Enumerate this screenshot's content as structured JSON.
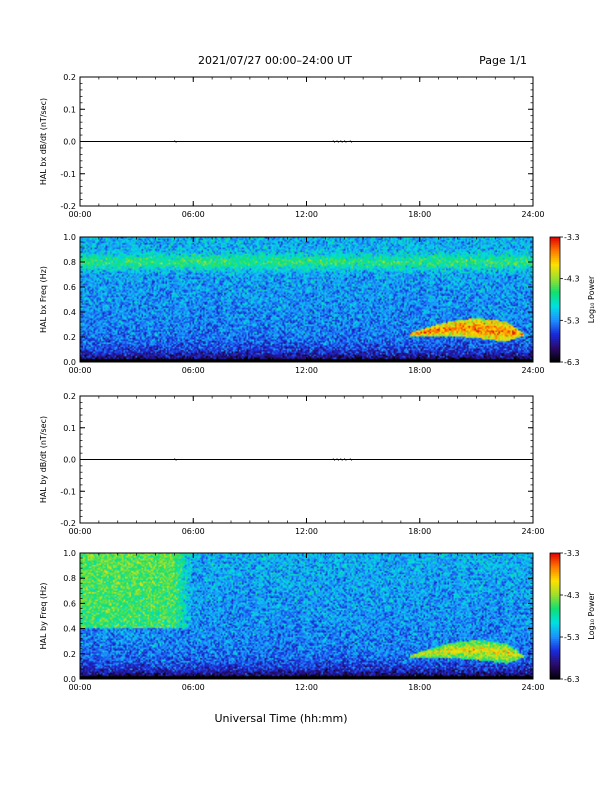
{
  "header": {
    "title": "2021/07/27  00:00–24:00 UT",
    "page": "Page 1/1"
  },
  "xaxis": {
    "label": "Universal Time (hh:mm)",
    "ticks": [
      "00:00",
      "06:00",
      "12:00",
      "18:00",
      "24:00"
    ],
    "range_hours": [
      0,
      24
    ]
  },
  "colorbar": {
    "label": "Log₁₀ Power",
    "ticks": [
      "-3.3",
      "-4.3",
      "-5.3",
      "-6.3"
    ],
    "range": [
      -6.3,
      -3.3
    ],
    "colormap": [
      "#000000",
      "#2a0a6a",
      "#1a2adc",
      "#1e90ff",
      "#00e0e0",
      "#10e070",
      "#9ae030",
      "#ffe000",
      "#ff7800",
      "#e00000"
    ]
  },
  "chart_data": [
    {
      "type": "line",
      "ylabel": "HAL bx dB/dt (nT/sec)",
      "ylim": [
        -0.2,
        0.2
      ],
      "yticks": [
        "0.2",
        "0.1",
        "0.0",
        "-0.1",
        "-0.2"
      ],
      "x": [
        0,
        24
      ],
      "y": [
        0.0,
        0.0
      ],
      "note_series": "near-zero trace with small disturbance around 13:30"
    },
    {
      "type": "heatmap",
      "ylabel": "HAL bx Freq (Hz)",
      "ylim": [
        0.0,
        1.0
      ],
      "yticks": [
        "1.0",
        "0.8",
        "0.6",
        "0.4",
        "0.2",
        "0.0"
      ],
      "xlim": [
        0,
        24
      ],
      "zlim": [
        -6.3,
        -3.3
      ],
      "features": [
        {
          "name": "band",
          "freq": 0.8,
          "power": -4.6
        },
        {
          "name": "wedge",
          "t_start": 17.5,
          "t_end": 23.5,
          "f_low": 0.18,
          "f_high": 0.32,
          "power": -3.6
        }
      ]
    },
    {
      "type": "line",
      "ylabel": "HAL by dB/dt (nT/sec)",
      "ylim": [
        -0.2,
        0.2
      ],
      "yticks": [
        "0.2",
        "0.1",
        "0.0",
        "-0.1",
        "-0.2"
      ],
      "x": [
        0,
        24
      ],
      "y": [
        0.0,
        0.0
      ]
    },
    {
      "type": "heatmap",
      "ylabel": "HAL by Freq (Hz)",
      "ylim": [
        0.0,
        1.0
      ],
      "yticks": [
        "1.0",
        "0.8",
        "0.6",
        "0.4",
        "0.2",
        "0.0"
      ],
      "xlim": [
        0,
        24
      ],
      "zlim": [
        -6.3,
        -3.3
      ],
      "features": [
        {
          "name": "early-patch",
          "t_start": 0,
          "t_end": 5,
          "f_low": 0.4,
          "f_high": 1.0,
          "power": -4.5
        },
        {
          "name": "wedge",
          "t_start": 17.5,
          "t_end": 23.5,
          "f_low": 0.14,
          "f_high": 0.3,
          "power": -4.0
        }
      ]
    }
  ]
}
